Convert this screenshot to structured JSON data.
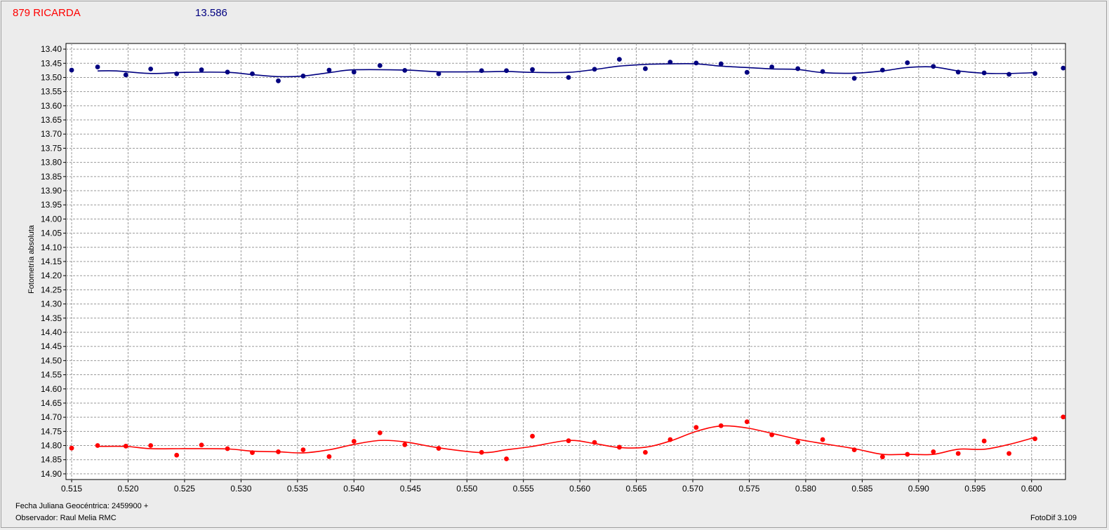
{
  "header": {
    "title": "879 RICARDA",
    "value": "13.586"
  },
  "footer": {
    "date_label": "Fecha Juliana Geocéntrica: 2459900 +",
    "observer": "Observador: Raul Melia RMC",
    "software": "FotoDif 3.109"
  },
  "chart_data": {
    "type": "scatter",
    "title": "879 RICARDA",
    "xlabel": "Fecha Juliana Geocéntrica: 2459900 +",
    "ylabel": "Fotometría absoluta",
    "xlim": [
      0.5145,
      0.603
    ],
    "ylim": [
      13.38,
      14.92
    ],
    "y_inverted": true,
    "grid": true,
    "x_ticks": [
      "0.515",
      "0.520",
      "0.525",
      "0.530",
      "0.535",
      "0.540",
      "0.545",
      "0.550",
      "0.555",
      "0.560",
      "0.565",
      "0.570",
      "0.575",
      "0.580",
      "0.585",
      "0.590",
      "0.595",
      "0.600"
    ],
    "y_ticks": [
      "13.40",
      "13.45",
      "13.50",
      "13.55",
      "13.60",
      "13.65",
      "13.70",
      "13.75",
      "13.80",
      "13.85",
      "13.90",
      "13.95",
      "14.00",
      "14.05",
      "14.10",
      "14.15",
      "14.20",
      "14.25",
      "14.30",
      "14.35",
      "14.40",
      "14.45",
      "14.50",
      "14.55",
      "14.60",
      "14.65",
      "14.70",
      "14.75",
      "14.80",
      "14.85",
      "14.90"
    ],
    "series": [
      {
        "color": "#000080",
        "points": [
          [
            0.515,
            13.474
          ],
          [
            0.5173,
            13.463
          ],
          [
            0.5198,
            13.491
          ],
          [
            0.522,
            13.47
          ],
          [
            0.5243,
            13.487
          ],
          [
            0.5265,
            13.473
          ],
          [
            0.5288,
            13.481
          ],
          [
            0.531,
            13.487
          ],
          [
            0.5333,
            13.512
          ],
          [
            0.5355,
            13.495
          ],
          [
            0.5378,
            13.474
          ],
          [
            0.54,
            13.481
          ],
          [
            0.5423,
            13.458
          ],
          [
            0.5445,
            13.475
          ],
          [
            0.5475,
            13.487
          ],
          [
            0.5513,
            13.476
          ],
          [
            0.5535,
            13.476
          ],
          [
            0.5558,
            13.472
          ],
          [
            0.559,
            13.5
          ],
          [
            0.5613,
            13.471
          ],
          [
            0.5635,
            13.436
          ],
          [
            0.5658,
            13.469
          ],
          [
            0.568,
            13.446
          ],
          [
            0.5703,
            13.449
          ],
          [
            0.5725,
            13.452
          ],
          [
            0.5748,
            13.482
          ],
          [
            0.577,
            13.463
          ],
          [
            0.5793,
            13.469
          ],
          [
            0.5815,
            13.479
          ],
          [
            0.5843,
            13.503
          ],
          [
            0.5868,
            13.474
          ],
          [
            0.589,
            13.448
          ],
          [
            0.5913,
            13.461
          ],
          [
            0.5935,
            13.481
          ],
          [
            0.5958,
            13.484
          ],
          [
            0.598,
            13.489
          ],
          [
            0.6003,
            13.486
          ],
          [
            0.6028,
            13.467
          ]
        ],
        "fit": [
          [
            0.5173,
            13.477
          ],
          [
            0.519,
            13.477
          ],
          [
            0.522,
            13.486
          ],
          [
            0.525,
            13.482
          ],
          [
            0.5288,
            13.482
          ],
          [
            0.531,
            13.49
          ],
          [
            0.5333,
            13.497
          ],
          [
            0.5355,
            13.495
          ],
          [
            0.538,
            13.482
          ],
          [
            0.54,
            13.473
          ],
          [
            0.5445,
            13.474
          ],
          [
            0.5475,
            13.48
          ],
          [
            0.5513,
            13.48
          ],
          [
            0.5535,
            13.479
          ],
          [
            0.5558,
            13.482
          ],
          [
            0.559,
            13.482
          ],
          [
            0.5613,
            13.472
          ],
          [
            0.5635,
            13.46
          ],
          [
            0.5658,
            13.454
          ],
          [
            0.568,
            13.452
          ],
          [
            0.5703,
            13.452
          ],
          [
            0.5725,
            13.46
          ],
          [
            0.5748,
            13.465
          ],
          [
            0.577,
            13.47
          ],
          [
            0.5793,
            13.472
          ],
          [
            0.5815,
            13.483
          ],
          [
            0.5843,
            13.485
          ],
          [
            0.5868,
            13.477
          ],
          [
            0.589,
            13.465
          ],
          [
            0.5913,
            13.463
          ],
          [
            0.5935,
            13.477
          ],
          [
            0.5958,
            13.485
          ],
          [
            0.598,
            13.486
          ],
          [
            0.6003,
            13.483
          ]
        ]
      },
      {
        "color": "#ff0000",
        "points": [
          [
            0.515,
            14.809
          ],
          [
            0.5173,
            14.8
          ],
          [
            0.5198,
            14.802
          ],
          [
            0.522,
            14.8
          ],
          [
            0.5243,
            14.834
          ],
          [
            0.5265,
            14.798
          ],
          [
            0.5288,
            14.811
          ],
          [
            0.531,
            14.825
          ],
          [
            0.5333,
            14.822
          ],
          [
            0.5355,
            14.815
          ],
          [
            0.5378,
            14.839
          ],
          [
            0.54,
            14.785
          ],
          [
            0.5423,
            14.755
          ],
          [
            0.5445,
            14.797
          ],
          [
            0.5475,
            14.81
          ],
          [
            0.5513,
            14.824
          ],
          [
            0.5535,
            14.847
          ],
          [
            0.5558,
            14.767
          ],
          [
            0.559,
            14.783
          ],
          [
            0.5613,
            14.789
          ],
          [
            0.5635,
            14.806
          ],
          [
            0.5658,
            14.824
          ],
          [
            0.568,
            14.779
          ],
          [
            0.5703,
            14.736
          ],
          [
            0.5725,
            14.73
          ],
          [
            0.5748,
            14.716
          ],
          [
            0.577,
            14.762
          ],
          [
            0.5793,
            14.788
          ],
          [
            0.5815,
            14.779
          ],
          [
            0.5843,
            14.815
          ],
          [
            0.5868,
            14.84
          ],
          [
            0.589,
            14.831
          ],
          [
            0.5913,
            14.822
          ],
          [
            0.5935,
            14.828
          ],
          [
            0.5958,
            14.784
          ],
          [
            0.598,
            14.828
          ],
          [
            0.6003,
            14.776
          ],
          [
            0.6028,
            14.699
          ]
        ],
        "fit": [
          [
            0.5173,
            14.803
          ],
          [
            0.5198,
            14.803
          ],
          [
            0.522,
            14.811
          ],
          [
            0.525,
            14.811
          ],
          [
            0.5288,
            14.812
          ],
          [
            0.531,
            14.82
          ],
          [
            0.5333,
            14.822
          ],
          [
            0.5355,
            14.826
          ],
          [
            0.5378,
            14.815
          ],
          [
            0.54,
            14.796
          ],
          [
            0.5423,
            14.782
          ],
          [
            0.5445,
            14.787
          ],
          [
            0.5475,
            14.808
          ],
          [
            0.5513,
            14.825
          ],
          [
            0.5535,
            14.815
          ],
          [
            0.5558,
            14.803
          ],
          [
            0.559,
            14.782
          ],
          [
            0.5613,
            14.793
          ],
          [
            0.5635,
            14.807
          ],
          [
            0.5658,
            14.806
          ],
          [
            0.568,
            14.784
          ],
          [
            0.5703,
            14.75
          ],
          [
            0.5725,
            14.731
          ],
          [
            0.5748,
            14.738
          ],
          [
            0.577,
            14.757
          ],
          [
            0.5793,
            14.778
          ],
          [
            0.5815,
            14.793
          ],
          [
            0.5843,
            14.811
          ],
          [
            0.5868,
            14.831
          ],
          [
            0.589,
            14.831
          ],
          [
            0.5913,
            14.831
          ],
          [
            0.5935,
            14.813
          ],
          [
            0.5958,
            14.813
          ],
          [
            0.598,
            14.796
          ],
          [
            0.6003,
            14.771
          ]
        ]
      }
    ]
  }
}
